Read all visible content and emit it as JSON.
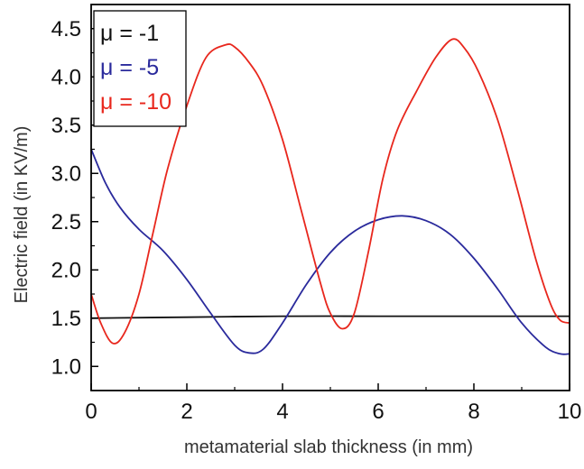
{
  "chart_data": {
    "type": "line",
    "title": "",
    "xlabel": "metamaterial slab thickness (in mm)",
    "ylabel": "Electric field (in KV/m)",
    "xlim": [
      0,
      10
    ],
    "ylim": [
      0.75,
      4.75
    ],
    "xticks": [
      0,
      2,
      4,
      6,
      8,
      10
    ],
    "yticks": [
      1.0,
      1.5,
      2.0,
      2.5,
      3.0,
      3.5,
      4.0,
      4.5
    ],
    "xtick_labels": [
      "0",
      "2",
      "4",
      "6",
      "8",
      "10"
    ],
    "ytick_labels": [
      "1.0",
      "1.5",
      "2.0",
      "2.5",
      "3.0",
      "3.5",
      "4.0",
      "4.5"
    ],
    "grid": false,
    "legend": "top-left",
    "series": [
      {
        "name": "μ = -1",
        "color": "#111111",
        "x": [
          0,
          2,
          4,
          6,
          8,
          10
        ],
        "y": [
          1.5,
          1.51,
          1.52,
          1.52,
          1.52,
          1.52
        ]
      },
      {
        "name": "μ = -5",
        "color": "#2a2a9c",
        "x": [
          0,
          0.3,
          0.6,
          1.0,
          1.5,
          2.0,
          2.5,
          3.0,
          3.3,
          3.6,
          4.0,
          4.5,
          5.0,
          5.5,
          6.0,
          6.5,
          7.0,
          7.5,
          8.0,
          8.5,
          9.0,
          9.5,
          9.8,
          10.0
        ],
        "y": [
          3.25,
          2.9,
          2.65,
          2.42,
          2.2,
          1.9,
          1.55,
          1.22,
          1.14,
          1.18,
          1.45,
          1.85,
          2.18,
          2.4,
          2.52,
          2.56,
          2.51,
          2.37,
          2.12,
          1.8,
          1.45,
          1.2,
          1.13,
          1.13
        ]
      },
      {
        "name": "μ = -10",
        "color": "#e8271d",
        "x": [
          0,
          0.2,
          0.45,
          0.7,
          1.0,
          1.3,
          1.6,
          2.0,
          2.4,
          2.8,
          3.0,
          3.3,
          3.6,
          4.0,
          4.4,
          4.8,
          5.0,
          5.25,
          5.5,
          5.8,
          6.1,
          6.4,
          6.8,
          7.2,
          7.55,
          7.8,
          8.1,
          8.5,
          8.9,
          9.3,
          9.6,
          9.8,
          10.0
        ],
        "y": [
          1.75,
          1.45,
          1.24,
          1.35,
          1.75,
          2.4,
          3.05,
          3.7,
          4.2,
          4.33,
          4.31,
          4.15,
          3.9,
          3.35,
          2.6,
          1.85,
          1.55,
          1.39,
          1.55,
          2.2,
          2.95,
          3.45,
          3.85,
          4.2,
          4.39,
          4.3,
          4.05,
          3.55,
          2.85,
          2.1,
          1.65,
          1.48,
          1.45
        ]
      }
    ]
  }
}
